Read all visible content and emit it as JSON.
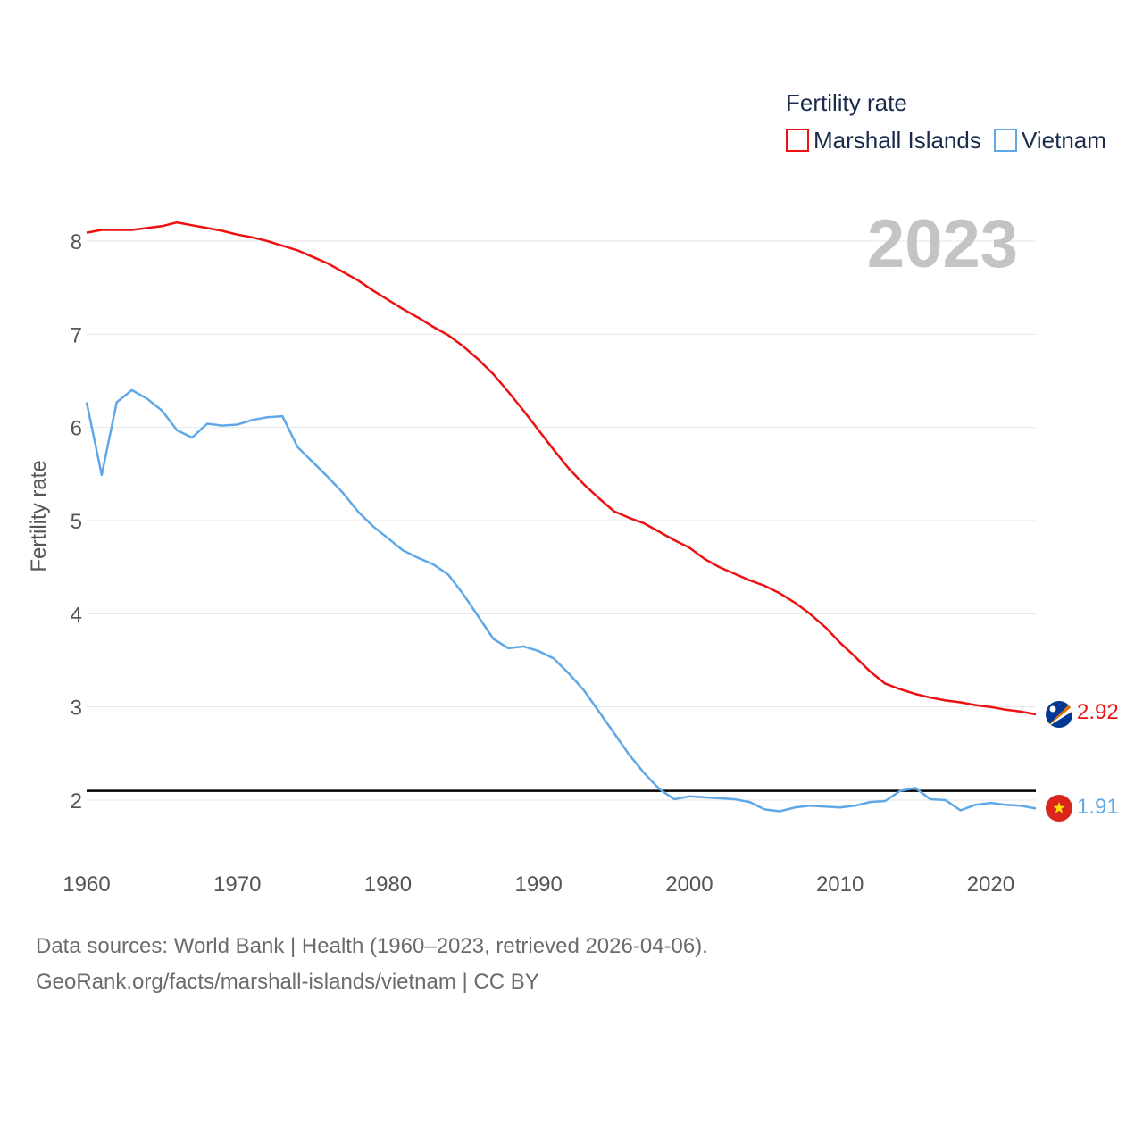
{
  "chart_data": {
    "type": "line",
    "xlabel": "",
    "ylabel": "Fertility rate",
    "xlim": [
      1960,
      2023
    ],
    "ylim": [
      1.5,
      8.8
    ],
    "xticks": [
      1960,
      1970,
      1980,
      1990,
      2000,
      2010,
      2020
    ],
    "yticks": [
      2,
      3,
      4,
      5,
      6,
      7,
      8
    ],
    "year_label": "2023",
    "legend_title": "Fertility rate",
    "reference_line": {
      "y": 2.1,
      "color": "#000000"
    },
    "x": [
      1960,
      1961,
      1962,
      1963,
      1964,
      1965,
      1966,
      1967,
      1968,
      1969,
      1970,
      1971,
      1972,
      1973,
      1974,
      1975,
      1976,
      1977,
      1978,
      1979,
      1980,
      1981,
      1982,
      1983,
      1984,
      1985,
      1986,
      1987,
      1988,
      1989,
      1990,
      1991,
      1992,
      1993,
      1994,
      1995,
      1996,
      1997,
      1998,
      1999,
      2000,
      2001,
      2002,
      2003,
      2004,
      2005,
      2006,
      2007,
      2008,
      2009,
      2010,
      2011,
      2012,
      2013,
      2014,
      2015,
      2016,
      2017,
      2018,
      2019,
      2020,
      2021,
      2022,
      2023
    ],
    "series": [
      {
        "name": "Marshall Islands",
        "color": "#ee1111",
        "end_label": "2.92",
        "flag": "marshall-islands-flag-icon",
        "values": [
          8.09,
          8.12,
          8.12,
          8.12,
          8.14,
          8.16,
          8.2,
          8.17,
          8.14,
          8.11,
          8.07,
          8.04,
          8.0,
          7.95,
          7.9,
          7.83,
          7.76,
          7.67,
          7.58,
          7.47,
          7.37,
          7.27,
          7.18,
          7.08,
          6.99,
          6.87,
          6.73,
          6.57,
          6.38,
          6.18,
          5.97,
          5.76,
          5.56,
          5.39,
          5.24,
          5.1,
          5.03,
          4.97,
          4.88,
          4.79,
          4.71,
          4.59,
          4.5,
          4.43,
          4.36,
          4.3,
          4.22,
          4.12,
          4.0,
          3.86,
          3.69,
          3.54,
          3.38,
          3.25,
          3.19,
          3.14,
          3.1,
          3.07,
          3.05,
          3.02,
          3.0,
          2.97,
          2.95,
          2.92
        ]
      },
      {
        "name": "Vietnam",
        "color": "#5fa8e8",
        "end_label": "1.91",
        "flag": "vietnam-flag-icon",
        "values": [
          6.27,
          5.49,
          6.27,
          6.4,
          6.31,
          6.18,
          5.97,
          5.89,
          6.04,
          6.02,
          6.03,
          6.08,
          6.11,
          6.12,
          5.79,
          5.63,
          5.47,
          5.3,
          5.1,
          4.94,
          4.81,
          4.68,
          4.6,
          4.53,
          4.42,
          4.21,
          3.97,
          3.73,
          3.63,
          3.65,
          3.6,
          3.52,
          3.36,
          3.18,
          2.95,
          2.72,
          2.49,
          2.29,
          2.12,
          2.01,
          2.04,
          2.03,
          2.02,
          2.01,
          1.98,
          1.9,
          1.88,
          1.92,
          1.94,
          1.93,
          1.92,
          1.94,
          1.98,
          1.99,
          2.1,
          2.13,
          2.01,
          2.0,
          1.89,
          1.95,
          1.97,
          1.95,
          1.94,
          1.91
        ]
      }
    ]
  },
  "footer": {
    "line1": "Data sources: World Bank | Health (1960–2023, retrieved 2026-04-06).",
    "line2": "GeoRank.org/facts/marshall-islands/vietnam | CC BY"
  }
}
